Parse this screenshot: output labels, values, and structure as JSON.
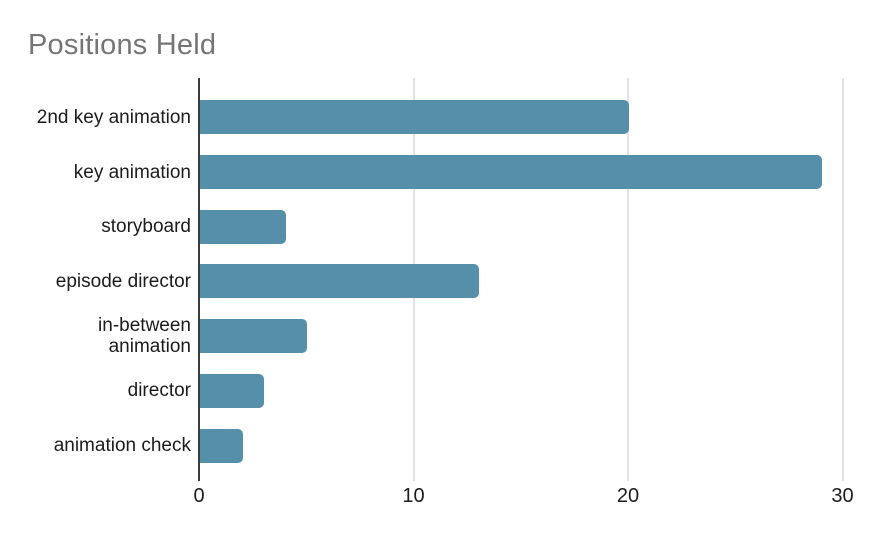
{
  "chart_data": {
    "type": "bar",
    "orientation": "horizontal",
    "title": "Positions Held",
    "categories": [
      "2nd key animation",
      "key animation",
      "storyboard",
      "episode director",
      "in-between\nanimation",
      "director",
      "animation check"
    ],
    "values": [
      20,
      29,
      4,
      13,
      5,
      3,
      2
    ],
    "xlabel": "",
    "ylabel": "",
    "xticks": [
      0,
      10,
      20,
      30
    ],
    "xlim": [
      0,
      31
    ],
    "grid": "vertical-only",
    "legend": "none"
  },
  "colors": {
    "bar": "#568fa9",
    "title": "#757575",
    "gridline": "#e2e2e2",
    "axis_line": "#3c3c3c",
    "text": "#1c1c1c",
    "background": "#ffffff"
  }
}
